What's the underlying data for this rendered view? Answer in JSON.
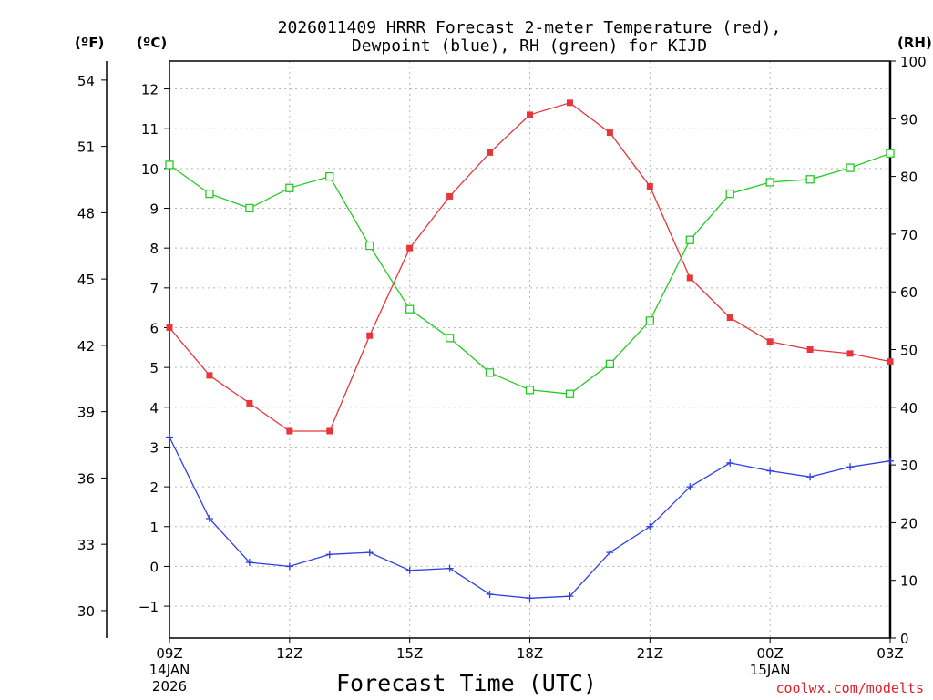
{
  "chart_data": {
    "type": "line",
    "title_line1": "2026011409 HRRR Forecast 2-meter Temperature (red),",
    "title_line2": "Dewpoint (blue), RH (green) for KIJD",
    "xlabel": "Forecast Time (UTC)",
    "credit": "coolwx.com/modelts",
    "units": {
      "fahrenheit": "(ºF)",
      "celsius": "(ºC)",
      "rh": "(RH)"
    },
    "x_tick_labels": [
      {
        "hour": 0,
        "label": "09Z",
        "sub1": "14JAN",
        "sub2": "2026"
      },
      {
        "hour": 3,
        "label": "12Z",
        "sub1": "",
        "sub2": ""
      },
      {
        "hour": 6,
        "label": "15Z",
        "sub1": "",
        "sub2": ""
      },
      {
        "hour": 9,
        "label": "18Z",
        "sub1": "",
        "sub2": ""
      },
      {
        "hour": 12,
        "label": "21Z",
        "sub1": "",
        "sub2": ""
      },
      {
        "hour": 15,
        "label": "00Z",
        "sub1": "15JAN",
        "sub2": ""
      },
      {
        "hour": 18,
        "label": "03Z",
        "sub1": "",
        "sub2": ""
      }
    ],
    "x_hours": [
      0,
      1,
      2,
      3,
      4,
      5,
      6,
      7,
      8,
      9,
      10,
      11,
      12,
      13,
      14,
      15,
      16,
      17,
      18
    ],
    "xlim": [
      0,
      18
    ],
    "celsius_axis": {
      "ylim": [
        -1.8,
        12.7
      ],
      "ticks": [
        -1,
        0,
        1,
        2,
        3,
        4,
        5,
        6,
        7,
        8,
        9,
        10,
        11,
        12
      ]
    },
    "fahrenheit_axis": {
      "ticks": [
        30,
        33,
        36,
        39,
        42,
        45,
        48,
        51,
        54
      ]
    },
    "rh_axis": {
      "ylim": [
        0,
        100
      ],
      "ticks": [
        0,
        10,
        20,
        30,
        40,
        50,
        60,
        70,
        80,
        90,
        100
      ]
    },
    "series": [
      {
        "name": "Temperature",
        "units": "C",
        "color": "#e8353a",
        "marker": "filled-square",
        "values": [
          6.0,
          4.8,
          4.1,
          3.4,
          3.4,
          5.8,
          8.0,
          9.3,
          10.4,
          11.35,
          11.65,
          10.9,
          9.55,
          7.25,
          6.25,
          5.65,
          5.45,
          5.35,
          5.15
        ]
      },
      {
        "name": "Dewpoint",
        "units": "C",
        "color": "#2d3fe0",
        "marker": "plus",
        "values": [
          3.25,
          1.2,
          0.1,
          0.0,
          0.3,
          0.35,
          -0.1,
          -0.05,
          -0.7,
          -0.8,
          -0.75,
          0.35,
          1.0,
          2.0,
          2.6,
          2.4,
          2.25,
          2.5,
          2.65
        ]
      },
      {
        "name": "RH",
        "units": "%",
        "color": "#22cc22",
        "marker": "open-square",
        "values": [
          82,
          77,
          74.5,
          78,
          80,
          68,
          57,
          52,
          46,
          43,
          42.3,
          47.5,
          55,
          69,
          77,
          79,
          79.5,
          81.5,
          84
        ]
      }
    ]
  }
}
